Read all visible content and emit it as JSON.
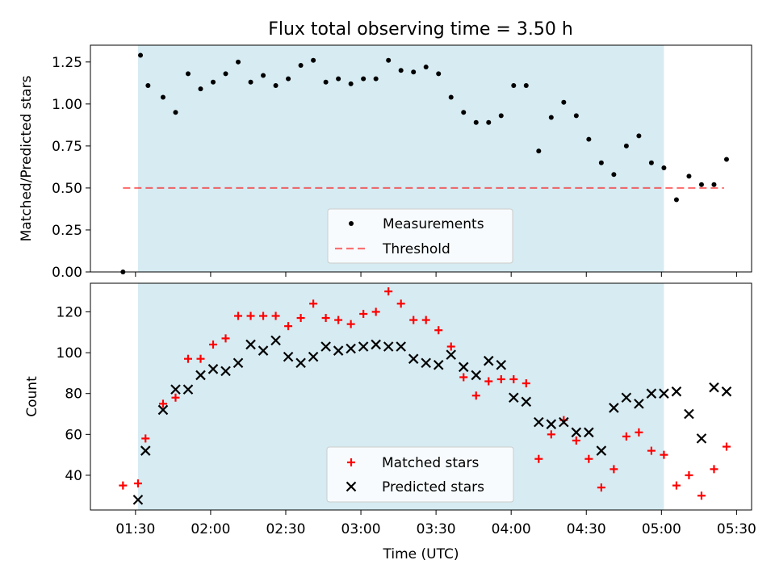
{
  "figure": {
    "title": "Flux total observing time = 3.50 h"
  },
  "colors": {
    "band": "#add8e6",
    "threshold": "#ff0000",
    "matched": "#ff0000",
    "predicted": "#000000",
    "measurement": "#000000"
  },
  "chart_data": [
    {
      "type": "scatter",
      "panel": "top",
      "ylabel": "Matched/Predicted stars",
      "xlim": [
        "01:12",
        "05:36"
      ],
      "ylim": [
        0,
        1.35
      ],
      "yticks": [
        0.0,
        0.25,
        0.5,
        0.75,
        1.0,
        1.25
      ],
      "ytick_labels": [
        "0.00",
        "0.25",
        "0.50",
        "0.75",
        "1.00",
        "1.25"
      ],
      "shaded_span": [
        "01:31",
        "05:01"
      ],
      "threshold": {
        "name": "Threshold",
        "value": 0.5,
        "x_range": [
          "01:25",
          "05:25"
        ]
      },
      "legend": {
        "position": "lower center",
        "entries": [
          "Measurements",
          "Threshold"
        ]
      },
      "series": [
        {
          "name": "Measurements",
          "marker": "dot",
          "x": [
            "01:25",
            "01:32",
            "01:35",
            "01:41",
            "01:46",
            "01:51",
            "01:56",
            "02:01",
            "02:06",
            "02:11",
            "02:16",
            "02:21",
            "02:26",
            "02:31",
            "02:36",
            "02:41",
            "02:46",
            "02:51",
            "02:56",
            "03:01",
            "03:06",
            "03:11",
            "03:16",
            "03:21",
            "03:26",
            "03:31",
            "03:36",
            "03:41",
            "03:46",
            "03:51",
            "03:56",
            "04:01",
            "04:06",
            "04:11",
            "04:16",
            "04:21",
            "04:26",
            "04:31",
            "04:36",
            "04:41",
            "04:46",
            "04:51",
            "04:56",
            "05:01",
            "05:06",
            "05:11",
            "05:16",
            "05:21",
            "05:26"
          ],
          "y": [
            0.0,
            1.29,
            1.11,
            1.04,
            0.95,
            1.18,
            1.09,
            1.13,
            1.18,
            1.25,
            1.13,
            1.17,
            1.11,
            1.15,
            1.23,
            1.26,
            1.13,
            1.15,
            1.12,
            1.15,
            1.15,
            1.26,
            1.2,
            1.19,
            1.22,
            1.18,
            1.04,
            0.95,
            0.89,
            0.89,
            0.93,
            1.11,
            1.11,
            0.72,
            0.92,
            1.01,
            0.93,
            0.79,
            0.65,
            0.58,
            0.75,
            0.81,
            0.65,
            0.62,
            0.43,
            0.57,
            0.52,
            0.52,
            0.67
          ]
        }
      ]
    },
    {
      "type": "scatter",
      "panel": "bottom",
      "xlabel": "Time (UTC)",
      "ylabel": "Count",
      "xlim": [
        "01:12",
        "05:36"
      ],
      "ylim": [
        23,
        134
      ],
      "yticks": [
        40,
        60,
        80,
        100,
        120
      ],
      "xticks": [
        "01:30",
        "02:00",
        "02:30",
        "03:00",
        "03:30",
        "04:00",
        "04:30",
        "05:00",
        "05:30"
      ],
      "shaded_span": [
        "01:31",
        "05:01"
      ],
      "legend": {
        "position": "lower center",
        "entries": [
          "Matched stars",
          "Predicted stars"
        ]
      },
      "series": [
        {
          "name": "Matched stars",
          "marker": "plus",
          "x": [
            "01:25",
            "01:31",
            "01:34",
            "01:41",
            "01:46",
            "01:51",
            "01:56",
            "02:01",
            "02:06",
            "02:11",
            "02:16",
            "02:21",
            "02:26",
            "02:31",
            "02:36",
            "02:41",
            "02:46",
            "02:51",
            "02:56",
            "03:01",
            "03:06",
            "03:11",
            "03:16",
            "03:21",
            "03:26",
            "03:31",
            "03:36",
            "03:41",
            "03:46",
            "03:51",
            "03:56",
            "04:01",
            "04:06",
            "04:11",
            "04:16",
            "04:21",
            "04:26",
            "04:31",
            "04:36",
            "04:41",
            "04:46",
            "04:51",
            "04:56",
            "05:01",
            "05:06",
            "05:11",
            "05:16",
            "05:21",
            "05:26"
          ],
          "y": [
            35,
            36,
            58,
            75,
            78,
            97,
            97,
            104,
            107,
            118,
            118,
            118,
            118,
            113,
            117,
            124,
            117,
            116,
            114,
            119,
            120,
            130,
            124,
            116,
            116,
            111,
            103,
            88,
            79,
            86,
            87,
            87,
            85,
            48,
            60,
            67,
            57,
            48,
            34,
            43,
            59,
            61,
            52,
            50,
            35,
            40,
            30,
            43,
            54
          ]
        },
        {
          "name": "Predicted stars",
          "marker": "cross",
          "x": [
            "01:31",
            "01:34",
            "01:41",
            "01:46",
            "01:51",
            "01:56",
            "02:01",
            "02:06",
            "02:11",
            "02:16",
            "02:21",
            "02:26",
            "02:31",
            "02:36",
            "02:41",
            "02:46",
            "02:51",
            "02:56",
            "03:01",
            "03:06",
            "03:11",
            "03:16",
            "03:21",
            "03:26",
            "03:31",
            "03:36",
            "03:41",
            "03:46",
            "03:51",
            "03:56",
            "04:01",
            "04:06",
            "04:11",
            "04:16",
            "04:21",
            "04:26",
            "04:31",
            "04:36",
            "04:41",
            "04:46",
            "04:51",
            "04:56",
            "05:01",
            "05:06",
            "05:11",
            "05:16",
            "05:21",
            "05:26"
          ],
          "y": [
            28,
            52,
            72,
            82,
            82,
            89,
            92,
            91,
            95,
            104,
            101,
            106,
            98,
            95,
            98,
            103,
            101,
            102,
            103,
            104,
            103,
            103,
            97,
            95,
            94,
            99,
            93,
            89,
            96,
            94,
            78,
            76,
            66,
            65,
            66,
            61,
            61,
            52,
            73,
            78,
            75,
            80,
            80,
            81,
            70,
            58,
            83,
            81
          ]
        }
      ]
    }
  ]
}
